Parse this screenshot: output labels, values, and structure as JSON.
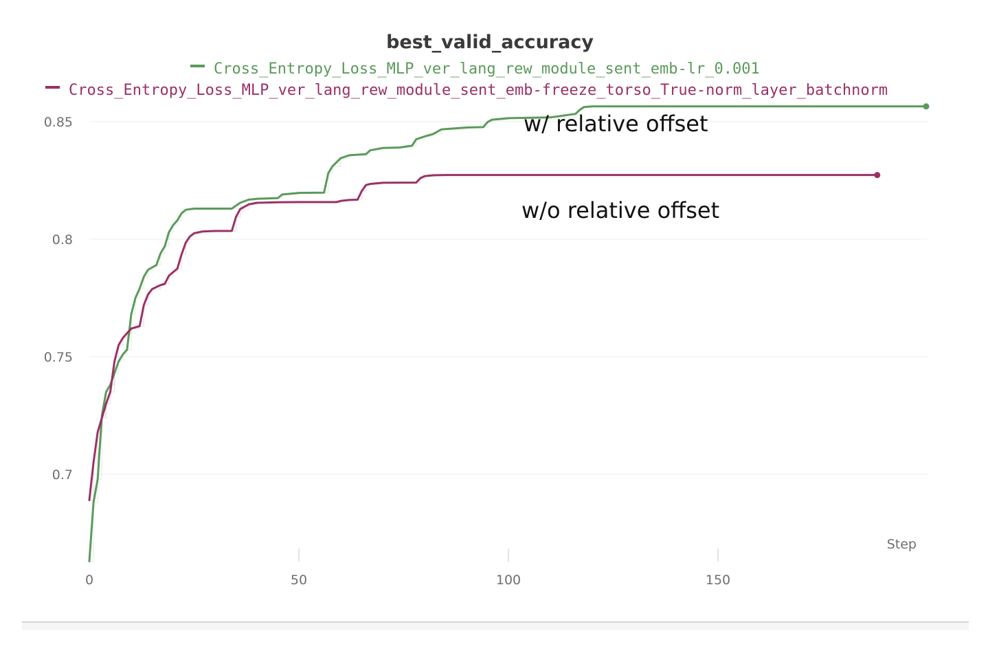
{
  "chart_data": {
    "type": "line",
    "title": "best_valid_accuracy",
    "xlabel": "Step",
    "ylabel": "",
    "xlim": [
      0,
      200
    ],
    "ylim": [
      0.66,
      0.857
    ],
    "x_ticks": [
      0,
      50,
      100,
      150
    ],
    "x_tick_labels": [
      "0",
      "50",
      "100",
      "150"
    ],
    "y_ticks": [
      0.7,
      0.75,
      0.8,
      0.85
    ],
    "y_tick_labels": [
      "0.7",
      "0.75",
      "0.8",
      "0.85"
    ],
    "grid": true,
    "legend_position": "top-center",
    "series": [
      {
        "name": "Cross_Entropy_Loss_MLP_ver_lang_rew_module_sent_emb-lr_0.001",
        "color": "#5b9a5b",
        "x": [
          0,
          1,
          2,
          3,
          4,
          5,
          6,
          7,
          8,
          9,
          10,
          11,
          12,
          13,
          14,
          15,
          16,
          17,
          18,
          19,
          20,
          21,
          22,
          23,
          25,
          30,
          34,
          36,
          38,
          40,
          45,
          46,
          50,
          56,
          57,
          58,
          60,
          62,
          66,
          67,
          70,
          74,
          77,
          78,
          80,
          82,
          84,
          90,
          94,
          95,
          96,
          100,
          110,
          116,
          117,
          118,
          120,
          150,
          200
        ],
        "values": [
          0.663,
          0.688,
          0.698,
          0.725,
          0.735,
          0.738,
          0.743,
          0.748,
          0.751,
          0.753,
          0.768,
          0.775,
          0.779,
          0.784,
          0.787,
          0.788,
          0.789,
          0.794,
          0.797,
          0.803,
          0.806,
          0.808,
          0.811,
          0.8125,
          0.813,
          0.813,
          0.813,
          0.8155,
          0.8168,
          0.8172,
          0.8175,
          0.819,
          0.8197,
          0.8198,
          0.828,
          0.831,
          0.8345,
          0.8357,
          0.8362,
          0.8378,
          0.8388,
          0.839,
          0.8398,
          0.8425,
          0.8437,
          0.8447,
          0.8467,
          0.8475,
          0.8477,
          0.8498,
          0.8508,
          0.8515,
          0.8518,
          0.8533,
          0.855,
          0.8562,
          0.8565,
          0.8565,
          0.8565
        ]
      },
      {
        "name": "Cross_Entropy_Loss_MLP_ver_lang_rew_module_sent_emb-freeze_torso_True-norm_layer_batchnorm",
        "color": "#9a3166",
        "x": [
          0,
          1,
          2,
          3,
          4,
          5,
          6,
          7,
          8,
          9,
          10,
          12,
          13,
          14,
          15,
          17,
          18,
          19,
          20,
          21,
          22,
          23,
          24,
          25,
          27,
          30,
          34,
          35,
          36,
          38,
          40,
          45,
          50,
          59,
          60,
          62,
          64,
          65,
          66,
          67,
          70,
          78,
          79,
          80,
          82,
          85,
          100,
          150,
          188
        ],
        "values": [
          0.689,
          0.705,
          0.718,
          0.724,
          0.73,
          0.735,
          0.748,
          0.755,
          0.758,
          0.76,
          0.762,
          0.763,
          0.772,
          0.7765,
          0.7788,
          0.7805,
          0.781,
          0.7845,
          0.786,
          0.7875,
          0.7935,
          0.7985,
          0.8012,
          0.8025,
          0.8033,
          0.8035,
          0.8035,
          0.8095,
          0.8128,
          0.8148,
          0.8155,
          0.8157,
          0.8158,
          0.8158,
          0.8163,
          0.8167,
          0.8168,
          0.8205,
          0.823,
          0.8235,
          0.824,
          0.8241,
          0.826,
          0.8268,
          0.8272,
          0.8273,
          0.8273,
          0.8273,
          0.8273
        ]
      }
    ],
    "annotations": [
      "w/ relative offset",
      "w/o relative offset"
    ]
  }
}
